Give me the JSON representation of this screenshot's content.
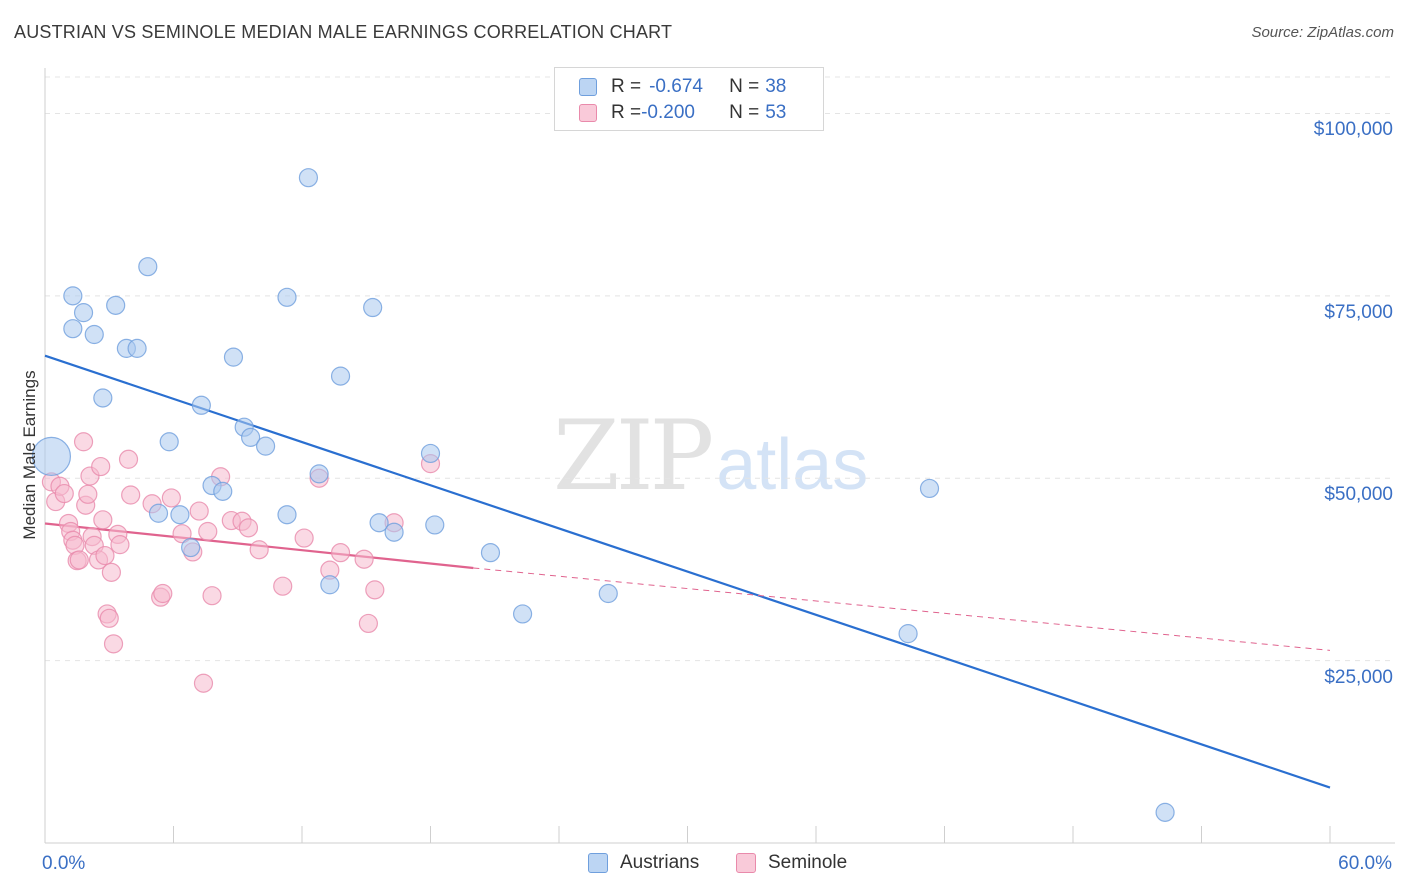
{
  "header": {
    "title": "AUSTRIAN VS SEMINOLE MEDIAN MALE EARNINGS CORRELATION CHART",
    "source": "Source: ZipAtlas.com"
  },
  "watermark": {
    "zip": "ZIP",
    "atlas": "atlas"
  },
  "legend": {
    "rows": [
      {
        "r_label": "R = ",
        "r_value": "-0.674",
        "n_label": "N = ",
        "n_value": "38"
      },
      {
        "r_label": "R = ",
        "r_value": "-0.200",
        "n_label": "N = ",
        "n_value": "53"
      }
    ]
  },
  "bottom_legend": {
    "austrians": "Austrians",
    "seminole": "Seminole"
  },
  "colors": {
    "austrians_fill": "#a9c8ef",
    "austrians_stroke": "#6f9fdd",
    "austrians_line": "#2a6fd0",
    "seminole_fill": "#f6b9cd",
    "seminole_stroke": "#e98aab",
    "seminole_line": "#e0638e",
    "grid": "#e4e4e4",
    "axis_text": "#3a6fc4"
  },
  "chart_data": {
    "type": "scatter",
    "title": "AUSTRIAN VS SEMINOLE MEDIAN MALE EARNINGS CORRELATION CHART",
    "xlabel": "",
    "ylabel": "Median Male Earnings",
    "xlim": [
      0,
      60
    ],
    "ylim": [
      0,
      105000
    ],
    "x_tick_labels": [
      "0.0%",
      "60.0%"
    ],
    "y_ticks": [
      25000,
      50000,
      75000,
      100000
    ],
    "y_tick_labels": [
      "$25,000",
      "$50,000",
      "$75,000",
      "$100,000"
    ],
    "grid": "horizontal dashed",
    "series": [
      {
        "name": "Austrians",
        "R": -0.674,
        "N": 38,
        "points": [
          [
            0.3,
            53000
          ],
          [
            1.3,
            70500
          ],
          [
            1.3,
            75000
          ],
          [
            1.8,
            72700
          ],
          [
            2.3,
            69700
          ],
          [
            2.7,
            61000
          ],
          [
            3.3,
            73700
          ],
          [
            3.8,
            67800
          ],
          [
            4.3,
            67800
          ],
          [
            4.8,
            79000
          ],
          [
            5.3,
            45200
          ],
          [
            5.8,
            55000
          ],
          [
            6.3,
            45000
          ],
          [
            6.8,
            40500
          ],
          [
            7.3,
            60000
          ],
          [
            7.8,
            49000
          ],
          [
            8.3,
            48200
          ],
          [
            8.8,
            66600
          ],
          [
            9.3,
            57000
          ],
          [
            9.6,
            55600
          ],
          [
            10.3,
            54400
          ],
          [
            11.3,
            74800
          ],
          [
            11.3,
            45000
          ],
          [
            12.3,
            91200
          ],
          [
            12.8,
            50600
          ],
          [
            13.3,
            35400
          ],
          [
            13.8,
            64000
          ],
          [
            15.3,
            73400
          ],
          [
            15.6,
            43900
          ],
          [
            16.3,
            42600
          ],
          [
            18.0,
            53400
          ],
          [
            18.2,
            43600
          ],
          [
            20.8,
            39800
          ],
          [
            22.3,
            31400
          ],
          [
            26.3,
            34200
          ],
          [
            40.3,
            28700
          ],
          [
            41.3,
            48600
          ],
          [
            52.3,
            4200
          ]
        ],
        "trend": {
          "x0": 0,
          "y0": 66800,
          "x1": 60,
          "y1": 7600,
          "style": "solid"
        }
      },
      {
        "name": "Seminole",
        "R": -0.2,
        "N": 53,
        "points": [
          [
            0.3,
            49500
          ],
          [
            0.5,
            46800
          ],
          [
            0.7,
            48900
          ],
          [
            0.9,
            47900
          ],
          [
            1.1,
            43800
          ],
          [
            1.2,
            42700
          ],
          [
            1.3,
            41500
          ],
          [
            1.4,
            40800
          ],
          [
            1.5,
            38700
          ],
          [
            1.6,
            38800
          ],
          [
            1.8,
            55000
          ],
          [
            1.9,
            46300
          ],
          [
            2.0,
            47800
          ],
          [
            2.1,
            50300
          ],
          [
            2.2,
            42000
          ],
          [
            2.3,
            40800
          ],
          [
            2.5,
            38800
          ],
          [
            2.6,
            51600
          ],
          [
            2.7,
            44300
          ],
          [
            2.8,
            39400
          ],
          [
            2.9,
            31400
          ],
          [
            3.0,
            30800
          ],
          [
            3.1,
            37100
          ],
          [
            3.2,
            27300
          ],
          [
            3.4,
            42300
          ],
          [
            3.5,
            40900
          ],
          [
            3.9,
            52600
          ],
          [
            4.0,
            47700
          ],
          [
            5.0,
            46500
          ],
          [
            5.4,
            33700
          ],
          [
            5.5,
            34200
          ],
          [
            5.9,
            47300
          ],
          [
            6.4,
            42400
          ],
          [
            6.9,
            39900
          ],
          [
            7.2,
            45500
          ],
          [
            7.4,
            21900
          ],
          [
            7.6,
            42700
          ],
          [
            7.8,
            33900
          ],
          [
            8.2,
            50200
          ],
          [
            8.7,
            44200
          ],
          [
            9.2,
            44100
          ],
          [
            9.5,
            43200
          ],
          [
            10.0,
            40200
          ],
          [
            11.1,
            35200
          ],
          [
            12.1,
            41800
          ],
          [
            12.8,
            50000
          ],
          [
            13.3,
            37400
          ],
          [
            13.8,
            39800
          ],
          [
            14.9,
            38900
          ],
          [
            15.1,
            30100
          ],
          [
            15.4,
            34700
          ],
          [
            16.3,
            43900
          ],
          [
            18.0,
            52000
          ]
        ],
        "trend": {
          "x0": 0,
          "y0": 43800,
          "x1": 20,
          "y1": 37700,
          "style": "solid",
          "extension": {
            "x0": 20,
            "y0": 37700,
            "x1": 60,
            "y1": 26400,
            "style": "dashed"
          }
        }
      }
    ]
  }
}
